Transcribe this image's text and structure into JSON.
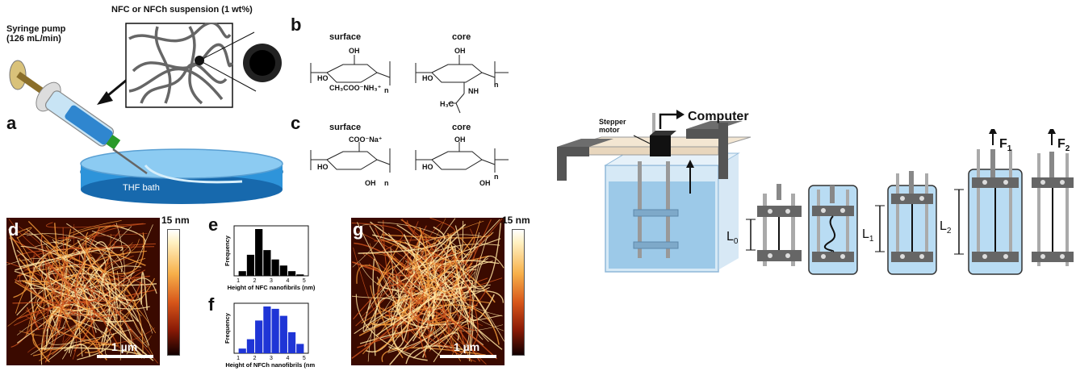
{
  "labels": {
    "syringe_pump": "Syringe pump",
    "syringe_rate": "(126 mL/min)",
    "suspension": "NFC or NFCh suspension (1 wt%)",
    "thf_bath": "THF bath",
    "surface": "surface",
    "core": "core",
    "stepper_motor_1": "Stepper",
    "stepper_motor_2": "motor",
    "computer": "Computer",
    "colorbar_max": "15 nm",
    "scale_bar": "1 µm",
    "L0": "L",
    "L0_sub": "0",
    "L1": "L",
    "L1_sub": "1",
    "L2": "L",
    "L2_sub": "2",
    "F1": "F",
    "F1_sub": "1",
    "F2": "F",
    "F2_sub": "2"
  },
  "panels": {
    "a": "a",
    "b": "b",
    "c": "c",
    "d": "d",
    "e": "e",
    "f": "f",
    "g": "g"
  },
  "chem": {
    "b_surface_sub": "CH₃COO⁻NH₃⁺",
    "b_core_sub": "H₃C",
    "c_surface_sub": "COO⁻Na⁺",
    "oh": "OH",
    "ho": "HO",
    "nh": "NH",
    "n": "n"
  },
  "chart_data": [
    {
      "type": "bar",
      "panel": "e",
      "xlabel": "Height of NFC nanofibrils (nm)",
      "ylabel": "Frequency",
      "x_ticks": [
        "1",
        "2",
        "3",
        "4",
        "5"
      ],
      "bar_centers": [
        1.25,
        1.75,
        2.25,
        2.75,
        3.25,
        3.75,
        4.25,
        4.75
      ],
      "values": [
        0.1,
        0.45,
        1.0,
        0.55,
        0.35,
        0.22,
        0.1,
        0.03
      ],
      "color": "#000000"
    },
    {
      "type": "bar",
      "panel": "f",
      "xlabel": "Height of NFCh nanofibrils (nm)",
      "ylabel": "Frequency",
      "x_ticks": [
        "1",
        "2",
        "3",
        "4",
        "5"
      ],
      "bar_centers": [
        1.25,
        1.75,
        2.25,
        2.75,
        3.25,
        3.75,
        4.25,
        4.75
      ],
      "values": [
        0.1,
        0.3,
        0.7,
        1.0,
        0.95,
        0.8,
        0.45,
        0.2
      ],
      "color": "#1f35d6"
    }
  ]
}
